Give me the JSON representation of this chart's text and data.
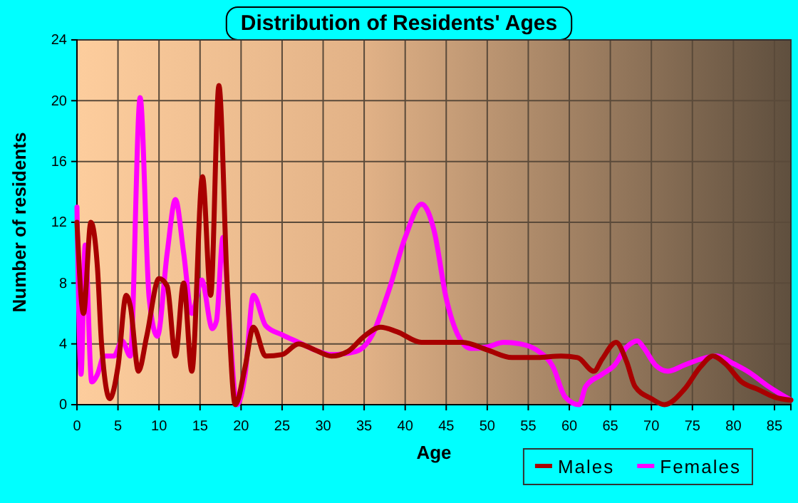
{
  "chart_data": {
    "type": "line",
    "title": "Distribution of Residents' Ages",
    "xlabel": "Age",
    "ylabel": "Number of residents",
    "xlim": [
      0,
      87
    ],
    "xticks": [
      0,
      5,
      10,
      15,
      20,
      25,
      30,
      35,
      40,
      45,
      50,
      55,
      60,
      65,
      70,
      75,
      80,
      85
    ],
    "ylim": [
      0,
      24
    ],
    "yticks": [
      0,
      4,
      8,
      12,
      16,
      20,
      24
    ],
    "grid": true,
    "legend": "bottom right",
    "series": [
      {
        "name": "Males",
        "color": "#a80000",
        "x": [
          0,
          0.8,
          1.7,
          2.5,
          3,
          4,
          5,
          6,
          6.5,
          7.5,
          8.5,
          10,
          11,
          12,
          13,
          14,
          15.3,
          16.3,
          17.3,
          18.3,
          19.3,
          20.5,
          21.5,
          23,
          25,
          27,
          29,
          31,
          33,
          35,
          37,
          39,
          42,
          45,
          47,
          50,
          53,
          56,
          59,
          61,
          63,
          64,
          65.7,
          67,
          68,
          70,
          71.6,
          74,
          76,
          77.5,
          79,
          81,
          83,
          85,
          87
        ],
        "values": [
          12,
          6,
          12,
          9,
          4,
          0.4,
          2.5,
          7.2,
          6.5,
          2.2,
          4.5,
          8.3,
          7.8,
          3.2,
          8,
          2.2,
          15,
          7.2,
          21,
          8,
          0,
          2.5,
          5.1,
          3.2,
          3.3,
          4,
          3.6,
          3.2,
          3.5,
          4.5,
          5.1,
          4.8,
          4.1,
          4.1,
          4.1,
          3.6,
          3.1,
          3.1,
          3.2,
          3.1,
          2.2,
          3,
          4.1,
          2.8,
          1.2,
          0.4,
          0,
          1,
          2.5,
          3.2,
          2.7,
          1.5,
          1,
          0.5,
          0.3
        ]
      },
      {
        "name": "Females",
        "color": "#ff00ff",
        "x": [
          0,
          0.5,
          1,
          1.8,
          2.5,
          3.3,
          4.5,
          5.5,
          6.5,
          7.7,
          8.8,
          9.8,
          11,
          12,
          13,
          14,
          15.2,
          16.5,
          17,
          17.8,
          18.5,
          19.5,
          20.5,
          21.5,
          23,
          25,
          27,
          29,
          31,
          34,
          36,
          38,
          40,
          42,
          43.5,
          45,
          46.5,
          48,
          50,
          52,
          54,
          56,
          58,
          59.5,
          61.2,
          62,
          64,
          65.5,
          67,
          68.3,
          69,
          70.5,
          72,
          74,
          76,
          78,
          80,
          82,
          84,
          87
        ],
        "values": [
          13,
          2,
          10.5,
          1.5,
          2,
          3.2,
          3.2,
          4.2,
          3.2,
          20.2,
          7,
          4.5,
          10,
          13.5,
          10,
          6,
          8.2,
          5,
          5.5,
          11,
          6,
          0,
          2,
          7.2,
          5.2,
          4.6,
          4.1,
          3.6,
          3.3,
          3.5,
          4.6,
          7.5,
          11,
          13.2,
          11.5,
          7,
          4.5,
          3.7,
          3.8,
          4.1,
          4,
          3.6,
          2.5,
          0.5,
          0,
          1.2,
          2,
          2.6,
          3.8,
          4.2,
          3.8,
          2.6,
          2.2,
          2.6,
          3,
          3.2,
          2.7,
          2.1,
          1.3,
          0.3
        ]
      }
    ]
  }
}
